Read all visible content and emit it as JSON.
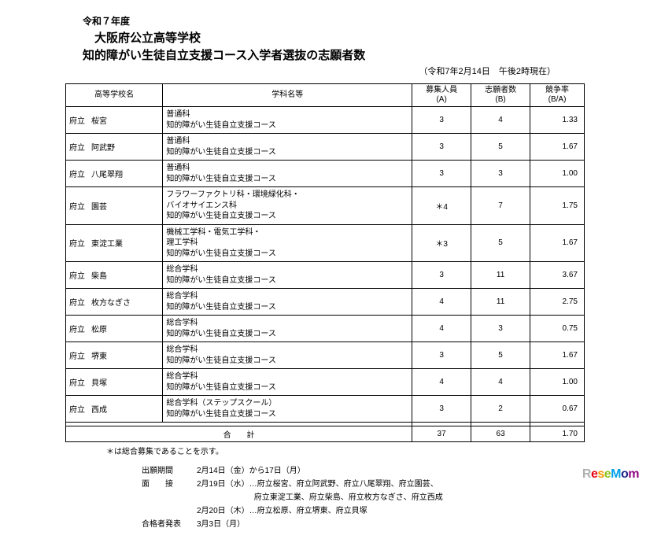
{
  "header": {
    "line1": "令和７年度",
    "line2": "大阪府公立高等学校",
    "line3": "知的障がい生徒自立支援コース入学者選抜の志願者数",
    "subtitle": "（令和7年2月14日　午後2時現在）"
  },
  "columns": {
    "school": "高等学校名",
    "dept": "学科名等",
    "capacity": "募集人員\n(A)",
    "applicants": "志願者数\n(B)",
    "ratio": "競争率\n(B/A)"
  },
  "rows": [
    {
      "pref": "府立",
      "school": "桜宮",
      "dept": "普通科\n知的障がい生徒自立支援コース",
      "cap": "3",
      "app": "4",
      "ratio": "1.33"
    },
    {
      "pref": "府立",
      "school": "阿武野",
      "dept": "普通科\n知的障がい生徒自立支援コース",
      "cap": "3",
      "app": "5",
      "ratio": "1.67"
    },
    {
      "pref": "府立",
      "school": "八尾翠翔",
      "dept": "普通科\n知的障がい生徒自立支援コース",
      "cap": "3",
      "app": "3",
      "ratio": "1.00"
    },
    {
      "pref": "府立",
      "school": "園芸",
      "dept": "フラワーファクトリ科・環境緑化科・\nバイオサイエンス科\n知的障がい生徒自立支援コース",
      "cap": "＊4",
      "app": "7",
      "ratio": "1.75"
    },
    {
      "pref": "府立",
      "school": "東淀工業",
      "dept": "機械工学科・電気工学科・\n理工学科\n知的障がい生徒自立支援コース",
      "cap": "＊3",
      "app": "5",
      "ratio": "1.67"
    },
    {
      "pref": "府立",
      "school": "柴島",
      "dept": "総合学科\n知的障がい生徒自立支援コース",
      "cap": "3",
      "app": "11",
      "ratio": "3.67"
    },
    {
      "pref": "府立",
      "school": "枚方なぎさ",
      "dept": "総合学科\n知的障がい生徒自立支援コース",
      "cap": "4",
      "app": "11",
      "ratio": "2.75"
    },
    {
      "pref": "府立",
      "school": "松原",
      "dept": "総合学科\n知的障がい生徒自立支援コース",
      "cap": "4",
      "app": "3",
      "ratio": "0.75"
    },
    {
      "pref": "府立",
      "school": "堺東",
      "dept": "総合学科\n知的障がい生徒自立支援コース",
      "cap": "3",
      "app": "5",
      "ratio": "1.67"
    },
    {
      "pref": "府立",
      "school": "貝塚",
      "dept": "総合学科\n知的障がい生徒自立支援コース",
      "cap": "4",
      "app": "4",
      "ratio": "1.00"
    },
    {
      "pref": "府立",
      "school": "西成",
      "dept": "総合学科（ステップスクール）\n知的障がい生徒自立支援コース",
      "cap": "3",
      "app": "2",
      "ratio": "0.67"
    }
  ],
  "total": {
    "label": "合　　計",
    "cap": "37",
    "app": "63",
    "ratio": "1.70"
  },
  "note": "＊は総合募集であることを示す。",
  "schedule": {
    "period": {
      "label": "出願期間",
      "value": "2月14日（金）から17日（月）"
    },
    "interview": {
      "label": "面　　接",
      "lines": [
        "2月19日（水）…府立桜宮、府立阿武野、府立八尾翠翔、府立園芸、",
        "　　　　　　　 府立東淀工業、府立柴島、府立枚方なぎさ、府立西成",
        "2月20日（木）…府立松原、府立堺東、府立貝塚"
      ]
    },
    "result": {
      "label": "合格者発表",
      "value": "3月3日（月）"
    }
  },
  "logo_text": "ReseMom"
}
